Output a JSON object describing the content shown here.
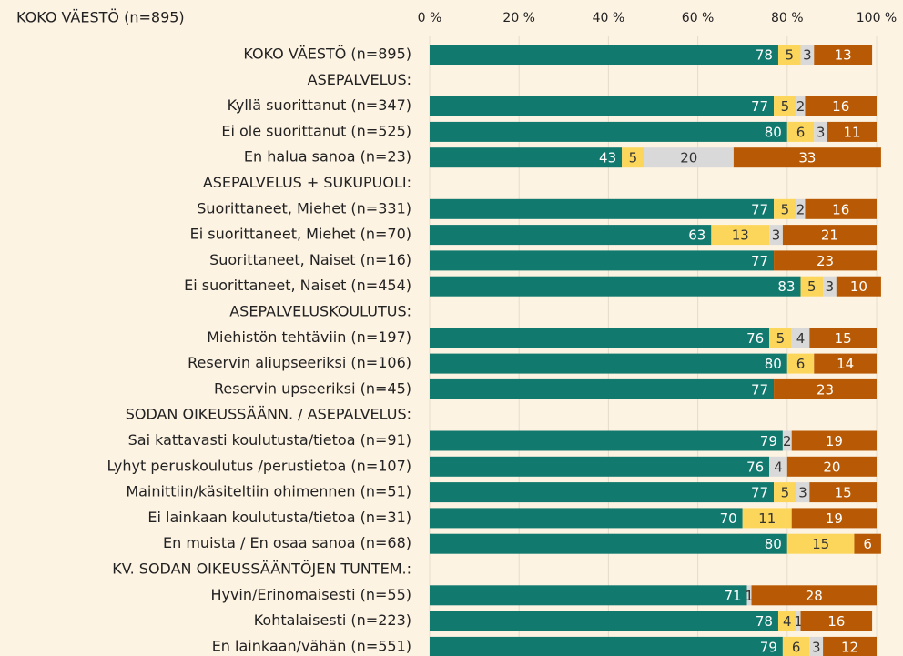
{
  "chart_data": {
    "type": "stacked-barh",
    "title": "KOKO VÄESTÖ (n=895)",
    "categories": [
      "KOKO VÄESTÖ (n=895)",
      "ASEPALVELUS:",
      "Kyllä suorittanut (n=347)",
      "Ei ole suorittanut (n=525)",
      "En halua sanoa (n=23)",
      "ASEPALVELUS + SUKUPUOLI:",
      "Suorittaneet, Miehet (n=331)",
      "Ei suorittaneet, Miehet (n=70)",
      "Suorittaneet, Naiset (n=16)",
      "Ei suorittaneet, Naiset (n=454)",
      "ASEPALVELUSKOULUTUS:",
      "Miehistön tehtäviin (n=197)",
      "Reservin aliupseeriksi (n=106)",
      "Reservin upseeriksi (n=45)",
      "SODAN OIKEUSSÄÄNN. / ASEPALVELUS:",
      "Sai kattavasti koulutusta/tietoa (n=91)",
      "Lyhyt peruskoulutus /perustietoa (n=107)",
      "Mainittiin/käsiteltiin ohimennen (n=51)",
      "Ei lainkaan koulutusta/tietoa (n=31)",
      "En muista / En osaa sanoa (n=68)",
      "KV. SODAN OIKEUSSÄÄNTÖJEN TUNTEM.:",
      "Hyvin/Erinomaisesti (n=55)",
      "Kohtalaisesti (n=223)",
      "En lainkaan/vähän (n=551)"
    ],
    "series": [
      {
        "color": "#12796f",
        "values": [
          78,
          null,
          77,
          80,
          43,
          null,
          77,
          63,
          77,
          83,
          null,
          76,
          80,
          77,
          null,
          79,
          76,
          77,
          70,
          80,
          null,
          71,
          78,
          79
        ]
      },
      {
        "color": "#fcd65b",
        "values": [
          5,
          null,
          5,
          6,
          5,
          null,
          5,
          13,
          null,
          5,
          null,
          5,
          6,
          null,
          null,
          null,
          null,
          5,
          11,
          15,
          null,
          null,
          4,
          6
        ]
      },
      {
        "color": "#d9d9d9",
        "values": [
          3,
          null,
          2,
          3,
          20,
          null,
          2,
          3,
          null,
          3,
          null,
          4,
          null,
          null,
          null,
          2,
          4,
          3,
          null,
          null,
          null,
          1,
          1,
          3
        ]
      },
      {
        "color": "#b85a05",
        "values": [
          13,
          null,
          16,
          11,
          33,
          null,
          16,
          21,
          23,
          10,
          null,
          15,
          14,
          23,
          null,
          19,
          20,
          15,
          19,
          6,
          null,
          28,
          16,
          12
        ]
      }
    ],
    "xlim": [
      0,
      100
    ],
    "xticks": [
      {
        "value": 0,
        "label": "0 %"
      },
      {
        "value": 20,
        "label": "20 %"
      },
      {
        "value": 40,
        "label": "40 %"
      },
      {
        "value": 60,
        "label": "60 %"
      },
      {
        "value": 80,
        "label": "80 %"
      },
      {
        "value": 100,
        "label": "100 %"
      }
    ],
    "grid": true
  }
}
